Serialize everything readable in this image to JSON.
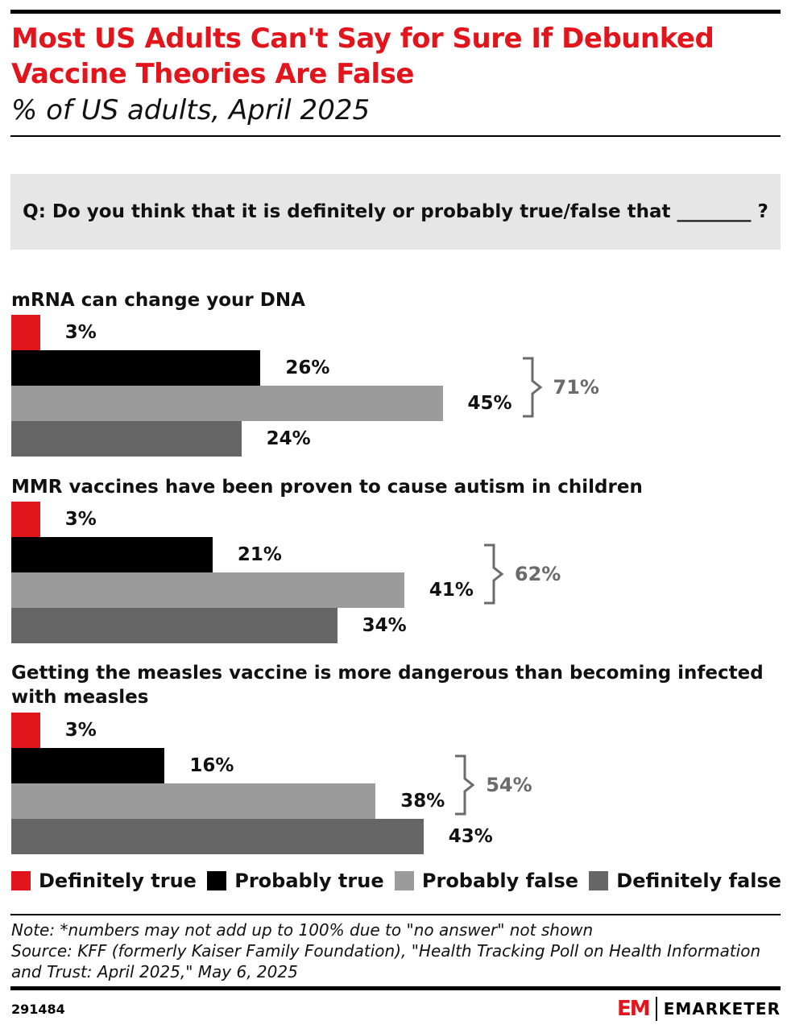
{
  "chart_data": {
    "type": "bar",
    "orientation": "horizontal",
    "title": "Most US Adults Can't Say for Sure If Debunked Vaccine Theories Are False",
    "subtitle": "% of US adults, April 2025",
    "question": "Q: Do you think that it is definitely or probably true/false that ________ ?",
    "unit": "%",
    "series_names": [
      "Definitely true",
      "Probably true",
      "Probably false",
      "Definitely false"
    ],
    "colors": [
      "#e3151c",
      "#000000",
      "#9b9b9b",
      "#666666"
    ],
    "groups": [
      {
        "label": "mRNA can change your DNA",
        "values": [
          3,
          26,
          45,
          24
        ],
        "labels": [
          "3%",
          "26%",
          "45%",
          "24%"
        ],
        "total_false": "71%"
      },
      {
        "label": "MMR vaccines have been proven to cause autism in children",
        "values": [
          3,
          21,
          41,
          34
        ],
        "labels": [
          "3%",
          "21%",
          "41%",
          "34%"
        ],
        "total_false": "62%"
      },
      {
        "label": "Getting the measles vaccine is more dangerous than becoming infected with measles",
        "values": [
          3,
          16,
          38,
          43
        ],
        "labels": [
          "3%",
          "16%",
          "38%",
          "43%"
        ],
        "total_false": "54%"
      }
    ]
  },
  "footer": {
    "note": "Note: *numbers may not add up to 100% due to \"no answer\" not shown",
    "source": "Source: KFF (formerly Kaiser Family Foundation), \"Health Tracking Poll on Health Information and Trust: April 2025,\" May 6, 2025",
    "id": "291484",
    "logo_mark": "EM",
    "logo_name": "EMARKETER"
  }
}
